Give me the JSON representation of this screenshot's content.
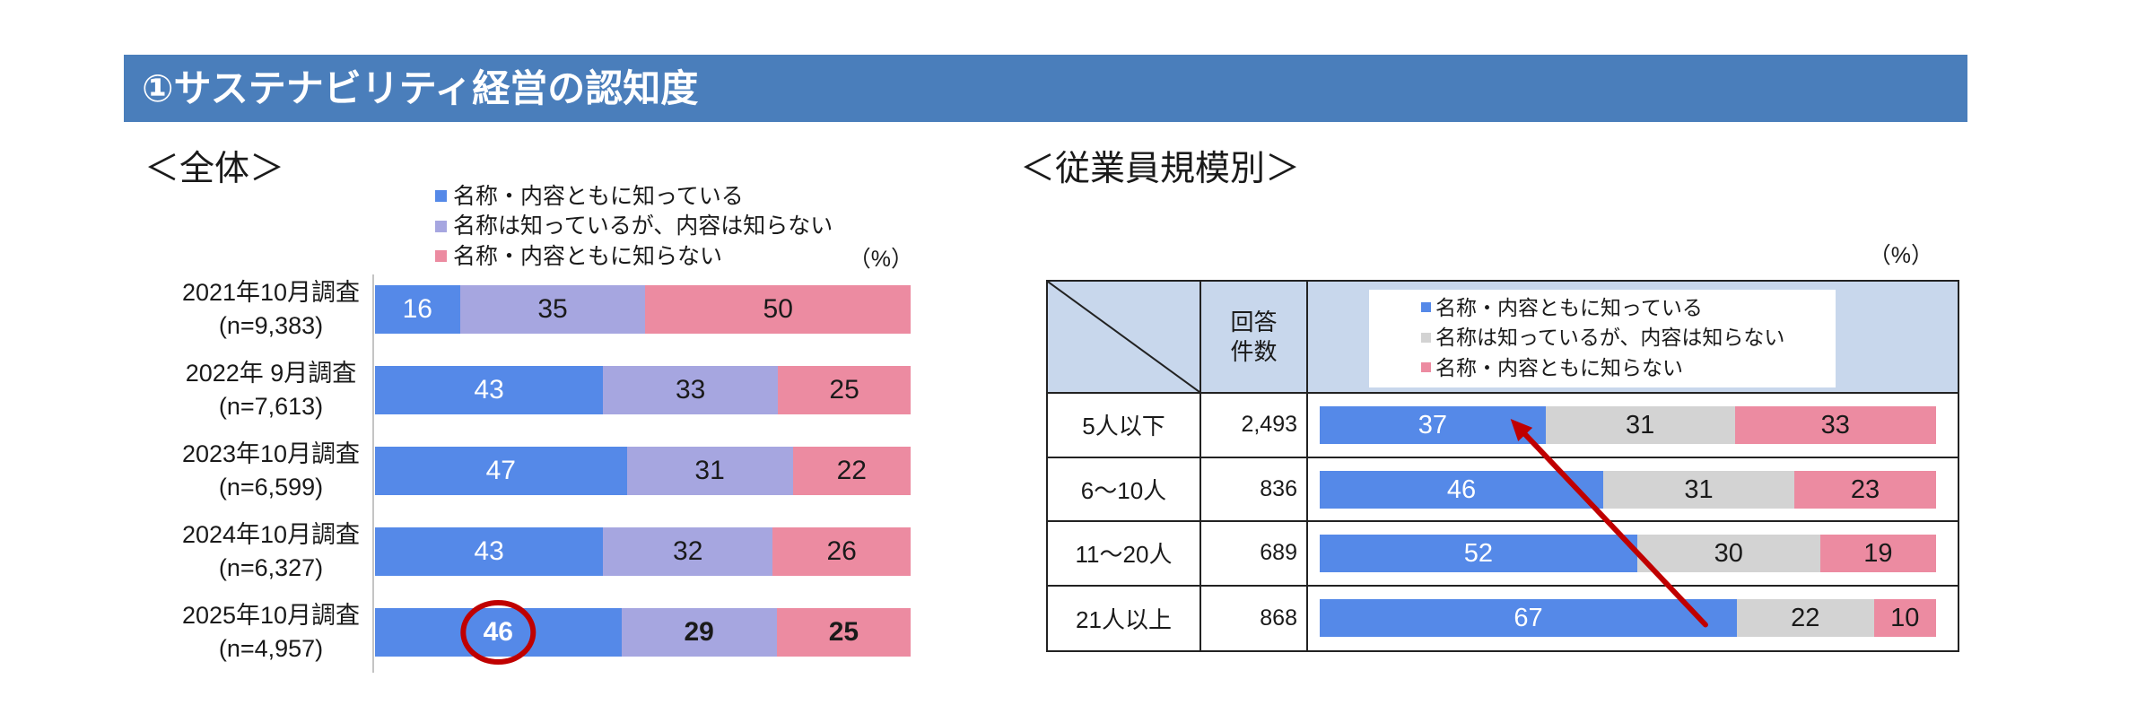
{
  "header": {
    "title": "①サステナビリティ経営の認知度"
  },
  "overall": {
    "heading": "＜全体＞",
    "unit": "（%）"
  },
  "by_size": {
    "heading": "＜従業員規模別＞",
    "unit": "（%）",
    "count_header": [
      "回答",
      "件数"
    ]
  },
  "colors": {
    "header_bg": "#4a7ebb",
    "table_header_bg": "#c8d7ec",
    "annotation": "#c00000"
  },
  "chart_data": [
    {
      "type": "bar",
      "orientation": "horizontal",
      "stacked": true,
      "categories": [
        "2021年10月調査",
        "2022年 9月調査",
        "2023年10月調査",
        "2024年10月調査",
        "2025年10月調査"
      ],
      "sample_sizes": [
        "(n=9,383)",
        "(n=7,613)",
        "(n=6,599)",
        "(n=6,327)",
        "(n=4,957)"
      ],
      "series": [
        {
          "name": "名称・内容ともに知っている",
          "values": [
            16,
            43,
            47,
            43,
            46
          ],
          "color": "#5589e8",
          "label_color": "#ffffff"
        },
        {
          "name": "名称は知っているが、内容は知らない",
          "values": [
            35,
            33,
            31,
            32,
            29
          ],
          "color": "#a6a6e0",
          "label_color": "#1a1a1a"
        },
        {
          "name": "名称・内容ともに知らない",
          "values": [
            50,
            25,
            22,
            26,
            25
          ],
          "color": "#ec8ba1",
          "label_color": "#1a1a1a"
        }
      ],
      "legend": "top",
      "highlight_index": 4
    },
    {
      "type": "bar",
      "orientation": "horizontal",
      "stacked": true,
      "categories": [
        "5人以下",
        "6～10人",
        "11～20人",
        "21人以上"
      ],
      "counts": [
        "2,493",
        "836",
        "689",
        "868"
      ],
      "series": [
        {
          "name": "名称・内容ともに知っている",
          "values": [
            37,
            46,
            52,
            67
          ],
          "color": "#5589e8",
          "label_color": "#ffffff"
        },
        {
          "name": "名称は知っているが、内容は知らない",
          "values": [
            31,
            31,
            30,
            22
          ],
          "color": "#d3d3d3",
          "label_color": "#1a1a1a"
        },
        {
          "name": "名称・内容ともに知らない",
          "values": [
            33,
            23,
            19,
            10
          ],
          "color": "#ec8ba1",
          "label_color": "#1a1a1a"
        }
      ],
      "legend": "top",
      "arrow": {
        "from_index": 3,
        "to_index": 0
      }
    }
  ]
}
